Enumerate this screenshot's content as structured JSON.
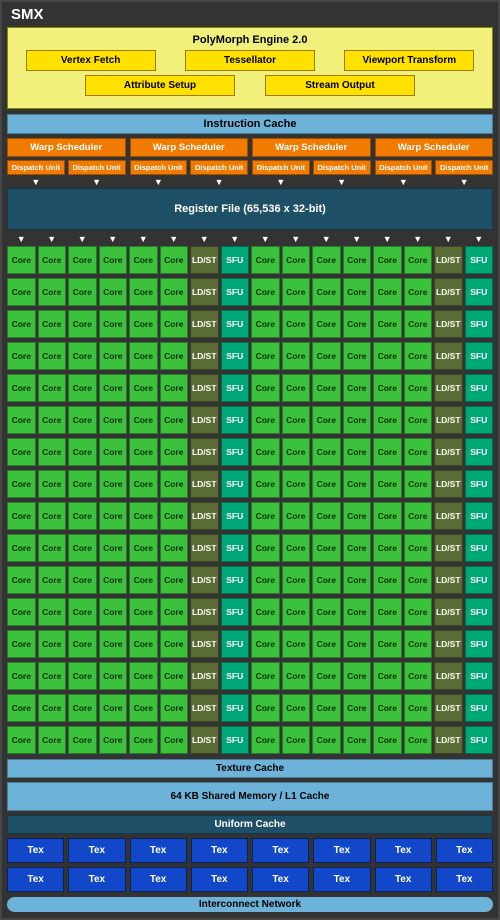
{
  "title": "SMX",
  "polymorph": {
    "title": "PolyMorph Engine 2.0",
    "row1": [
      "Vertex Fetch",
      "Tessellator",
      "Viewport Transform"
    ],
    "row2": [
      "Attribute Setup",
      "Stream Output"
    ],
    "bg": "#f0f07a",
    "block_bg": "#ffe100"
  },
  "bars": {
    "instruction_cache": "Instruction Cache",
    "register_file": "Register File (65,536 x 32-bit)",
    "texture_cache": "Texture Cache",
    "l1_cache": "64 KB Shared Memory / L1 Cache",
    "uniform_cache": "Uniform Cache",
    "interconnect": "Interconnect Network"
  },
  "scheduler": {
    "warp_label": "Warp Scheduler",
    "dispatch_label": "Dispatch Unit",
    "warp_count": 4,
    "dispatch_per_warp": 2,
    "warp_bg": "#f17a00"
  },
  "core_grid": {
    "rows": 16,
    "pattern_per_half": [
      {
        "label": "Core",
        "class": "u-core"
      },
      {
        "label": "Core",
        "class": "u-core"
      },
      {
        "label": "Core",
        "class": "u-core"
      },
      {
        "label": "Core",
        "class": "u-core"
      },
      {
        "label": "Core",
        "class": "u-core"
      },
      {
        "label": "Core",
        "class": "u-core"
      },
      {
        "label": "LD/ST",
        "class": "u-ldst"
      },
      {
        "label": "SFU",
        "class": "u-sfu"
      }
    ],
    "colors": {
      "core": "#3cc13c",
      "ldst": "#5a6b33",
      "sfu": "#00a878"
    }
  },
  "tex": {
    "label": "Tex",
    "columns": 8,
    "rows": 2,
    "bg": "#1147c8"
  },
  "palette": {
    "frame_bg": "#333333",
    "bar_light": "#6db3d9",
    "bar_dark": "#1d5066"
  }
}
